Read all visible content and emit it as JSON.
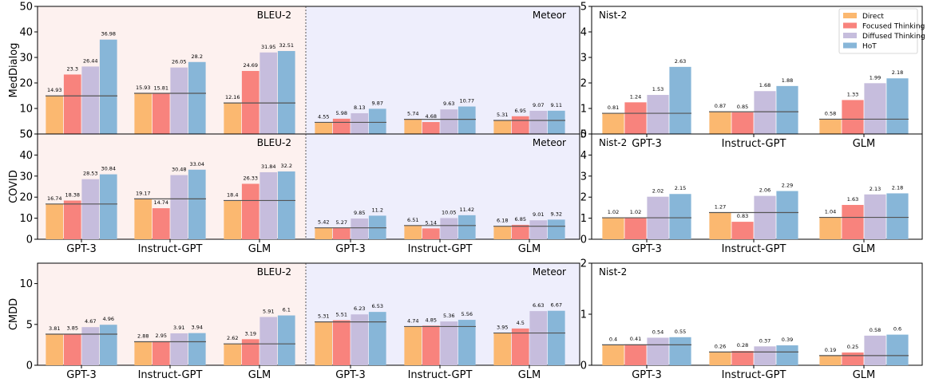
{
  "series": [
    "Direct",
    "Focused Thinking",
    "Diffused Thinking",
    "HoT"
  ],
  "colors": {
    "series": [
      "#fbb870",
      "#f8837d",
      "#c6bddd",
      "#87b6d8"
    ],
    "bleu_bg": "#fdf1ef",
    "meteor_bg": "#eeeefc",
    "baseline": "#555555"
  },
  "categories": [
    "GPT-3",
    "Instruct-GPT",
    "GLM"
  ],
  "panel_labels": {
    "bleu": "BLEU-2",
    "meteor": "Meteor",
    "nist": "Nist-2"
  },
  "chart_data": [
    {
      "type": "bar",
      "dataset": "MedDialog",
      "ylabel": "MedDialog",
      "left_ylim": [
        0,
        50
      ],
      "left_yticks": [
        0,
        10,
        20,
        30,
        40,
        50
      ],
      "right_ylim": [
        0,
        5
      ],
      "right_yticks": [
        0,
        1,
        2,
        3,
        4,
        5
      ],
      "bleu": [
        [
          14.93,
          23.3,
          26.44,
          36.98
        ],
        [
          15.93,
          15.81,
          26.05,
          28.2
        ],
        [
          12.16,
          24.69,
          31.95,
          32.51
        ]
      ],
      "meteor": [
        [
          4.55,
          5.98,
          8.13,
          9.87
        ],
        [
          5.74,
          4.68,
          9.63,
          10.77
        ],
        [
          5.31,
          6.95,
          9.07,
          9.11
        ]
      ],
      "nist": [
        [
          0.81,
          1.24,
          1.53,
          2.63
        ],
        [
          0.87,
          0.85,
          1.68,
          1.88
        ],
        [
          0.58,
          1.33,
          1.99,
          2.18
        ]
      ]
    },
    {
      "type": "bar",
      "dataset": "COVID",
      "ylabel": "COVID",
      "left_ylim": [
        0,
        50
      ],
      "left_yticks": [
        0,
        10,
        20,
        30,
        40,
        50
      ],
      "right_ylim": [
        0,
        5
      ],
      "right_yticks": [
        0,
        1,
        2,
        3,
        4,
        5
      ],
      "bleu": [
        [
          16.74,
          18.38,
          28.53,
          30.84
        ],
        [
          19.17,
          14.74,
          30.48,
          33.04
        ],
        [
          18.4,
          26.33,
          31.84,
          32.2
        ]
      ],
      "meteor": [
        [
          5.42,
          5.27,
          9.85,
          11.2
        ],
        [
          6.51,
          5.14,
          10.05,
          11.42
        ],
        [
          6.18,
          6.85,
          9.01,
          9.32
        ]
      ],
      "nist": [
        [
          1.02,
          1.02,
          2.02,
          2.15
        ],
        [
          1.27,
          0.83,
          2.06,
          2.29
        ],
        [
          1.04,
          1.63,
          2.13,
          2.18
        ]
      ]
    },
    {
      "type": "bar",
      "dataset": "CMDD",
      "ylabel": "CMDD",
      "left_ylim": [
        0,
        12.5
      ],
      "left_yticks": [
        0,
        5,
        10
      ],
      "right_ylim": [
        0,
        2
      ],
      "right_yticks": [
        0,
        1,
        2
      ],
      "bleu": [
        [
          3.81,
          3.85,
          4.67,
          4.96
        ],
        [
          2.88,
          2.95,
          3.91,
          3.94
        ],
        [
          2.62,
          3.19,
          5.91,
          6.1
        ]
      ],
      "meteor": [
        [
          5.31,
          5.51,
          6.23,
          6.53
        ],
        [
          4.74,
          4.85,
          5.36,
          5.56
        ],
        [
          3.95,
          4.5,
          6.63,
          6.67
        ]
      ],
      "nist": [
        [
          0.4,
          0.41,
          0.54,
          0.55
        ],
        [
          0.26,
          0.28,
          0.37,
          0.39
        ],
        [
          0.19,
          0.25,
          0.58,
          0.6
        ]
      ]
    }
  ]
}
